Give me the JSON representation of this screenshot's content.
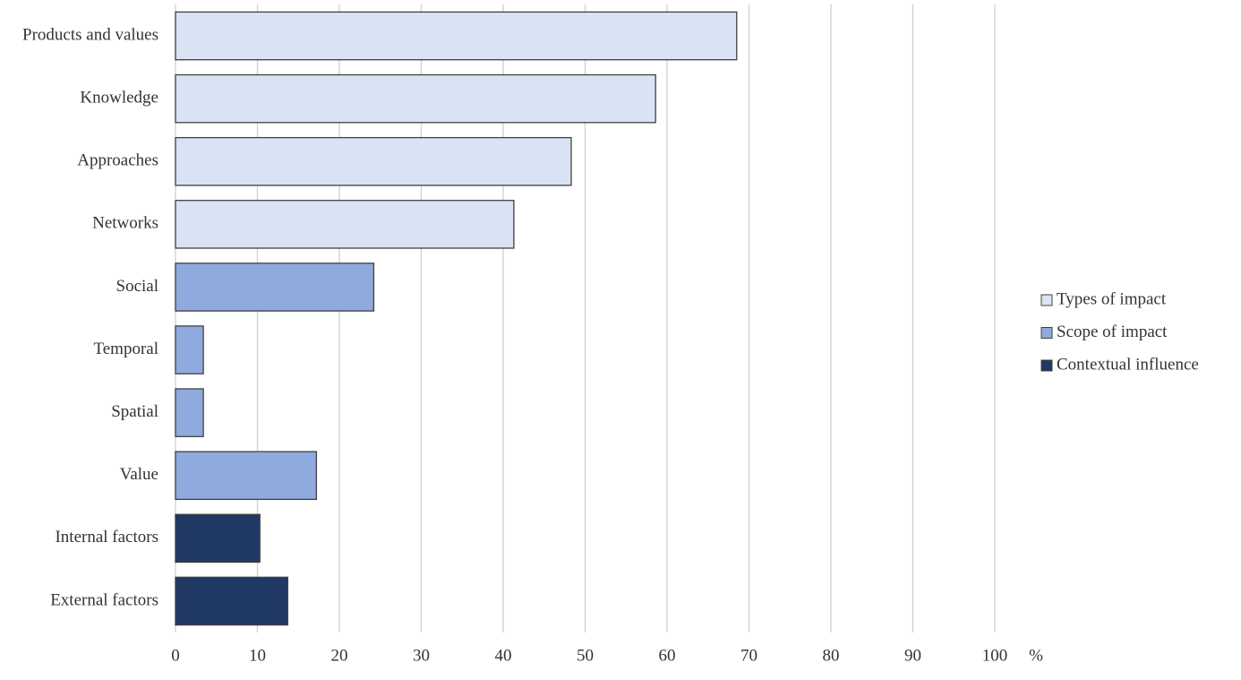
{
  "chart_data": {
    "type": "bar",
    "orientation": "horizontal",
    "categories": [
      "Products and values",
      "Knowledge",
      "Approaches",
      "Networks",
      "Social",
      "Temporal",
      "Spatial",
      "Value",
      "Internal factors",
      "External factors"
    ],
    "series": [
      {
        "name": "Types of impact",
        "color": "#dae3f3",
        "values": [
          68.5,
          58.6,
          48.3,
          41.3,
          null,
          null,
          null,
          null,
          null,
          null
        ]
      },
      {
        "name": "Scope of impact",
        "color": "#8faadc",
        "values": [
          null,
          null,
          null,
          null,
          24.2,
          3.4,
          3.4,
          17.2,
          null,
          null
        ]
      },
      {
        "name": "Contextual influence",
        "color": "#203864",
        "values": [
          null,
          null,
          null,
          null,
          null,
          null,
          null,
          null,
          10.3,
          13.7
        ]
      }
    ],
    "xlabel": "%",
    "xlim": [
      0,
      100
    ],
    "xticks": [
      0,
      10,
      20,
      30,
      40,
      50,
      60,
      70,
      80,
      90,
      100
    ],
    "grid": true,
    "legend": "right"
  }
}
